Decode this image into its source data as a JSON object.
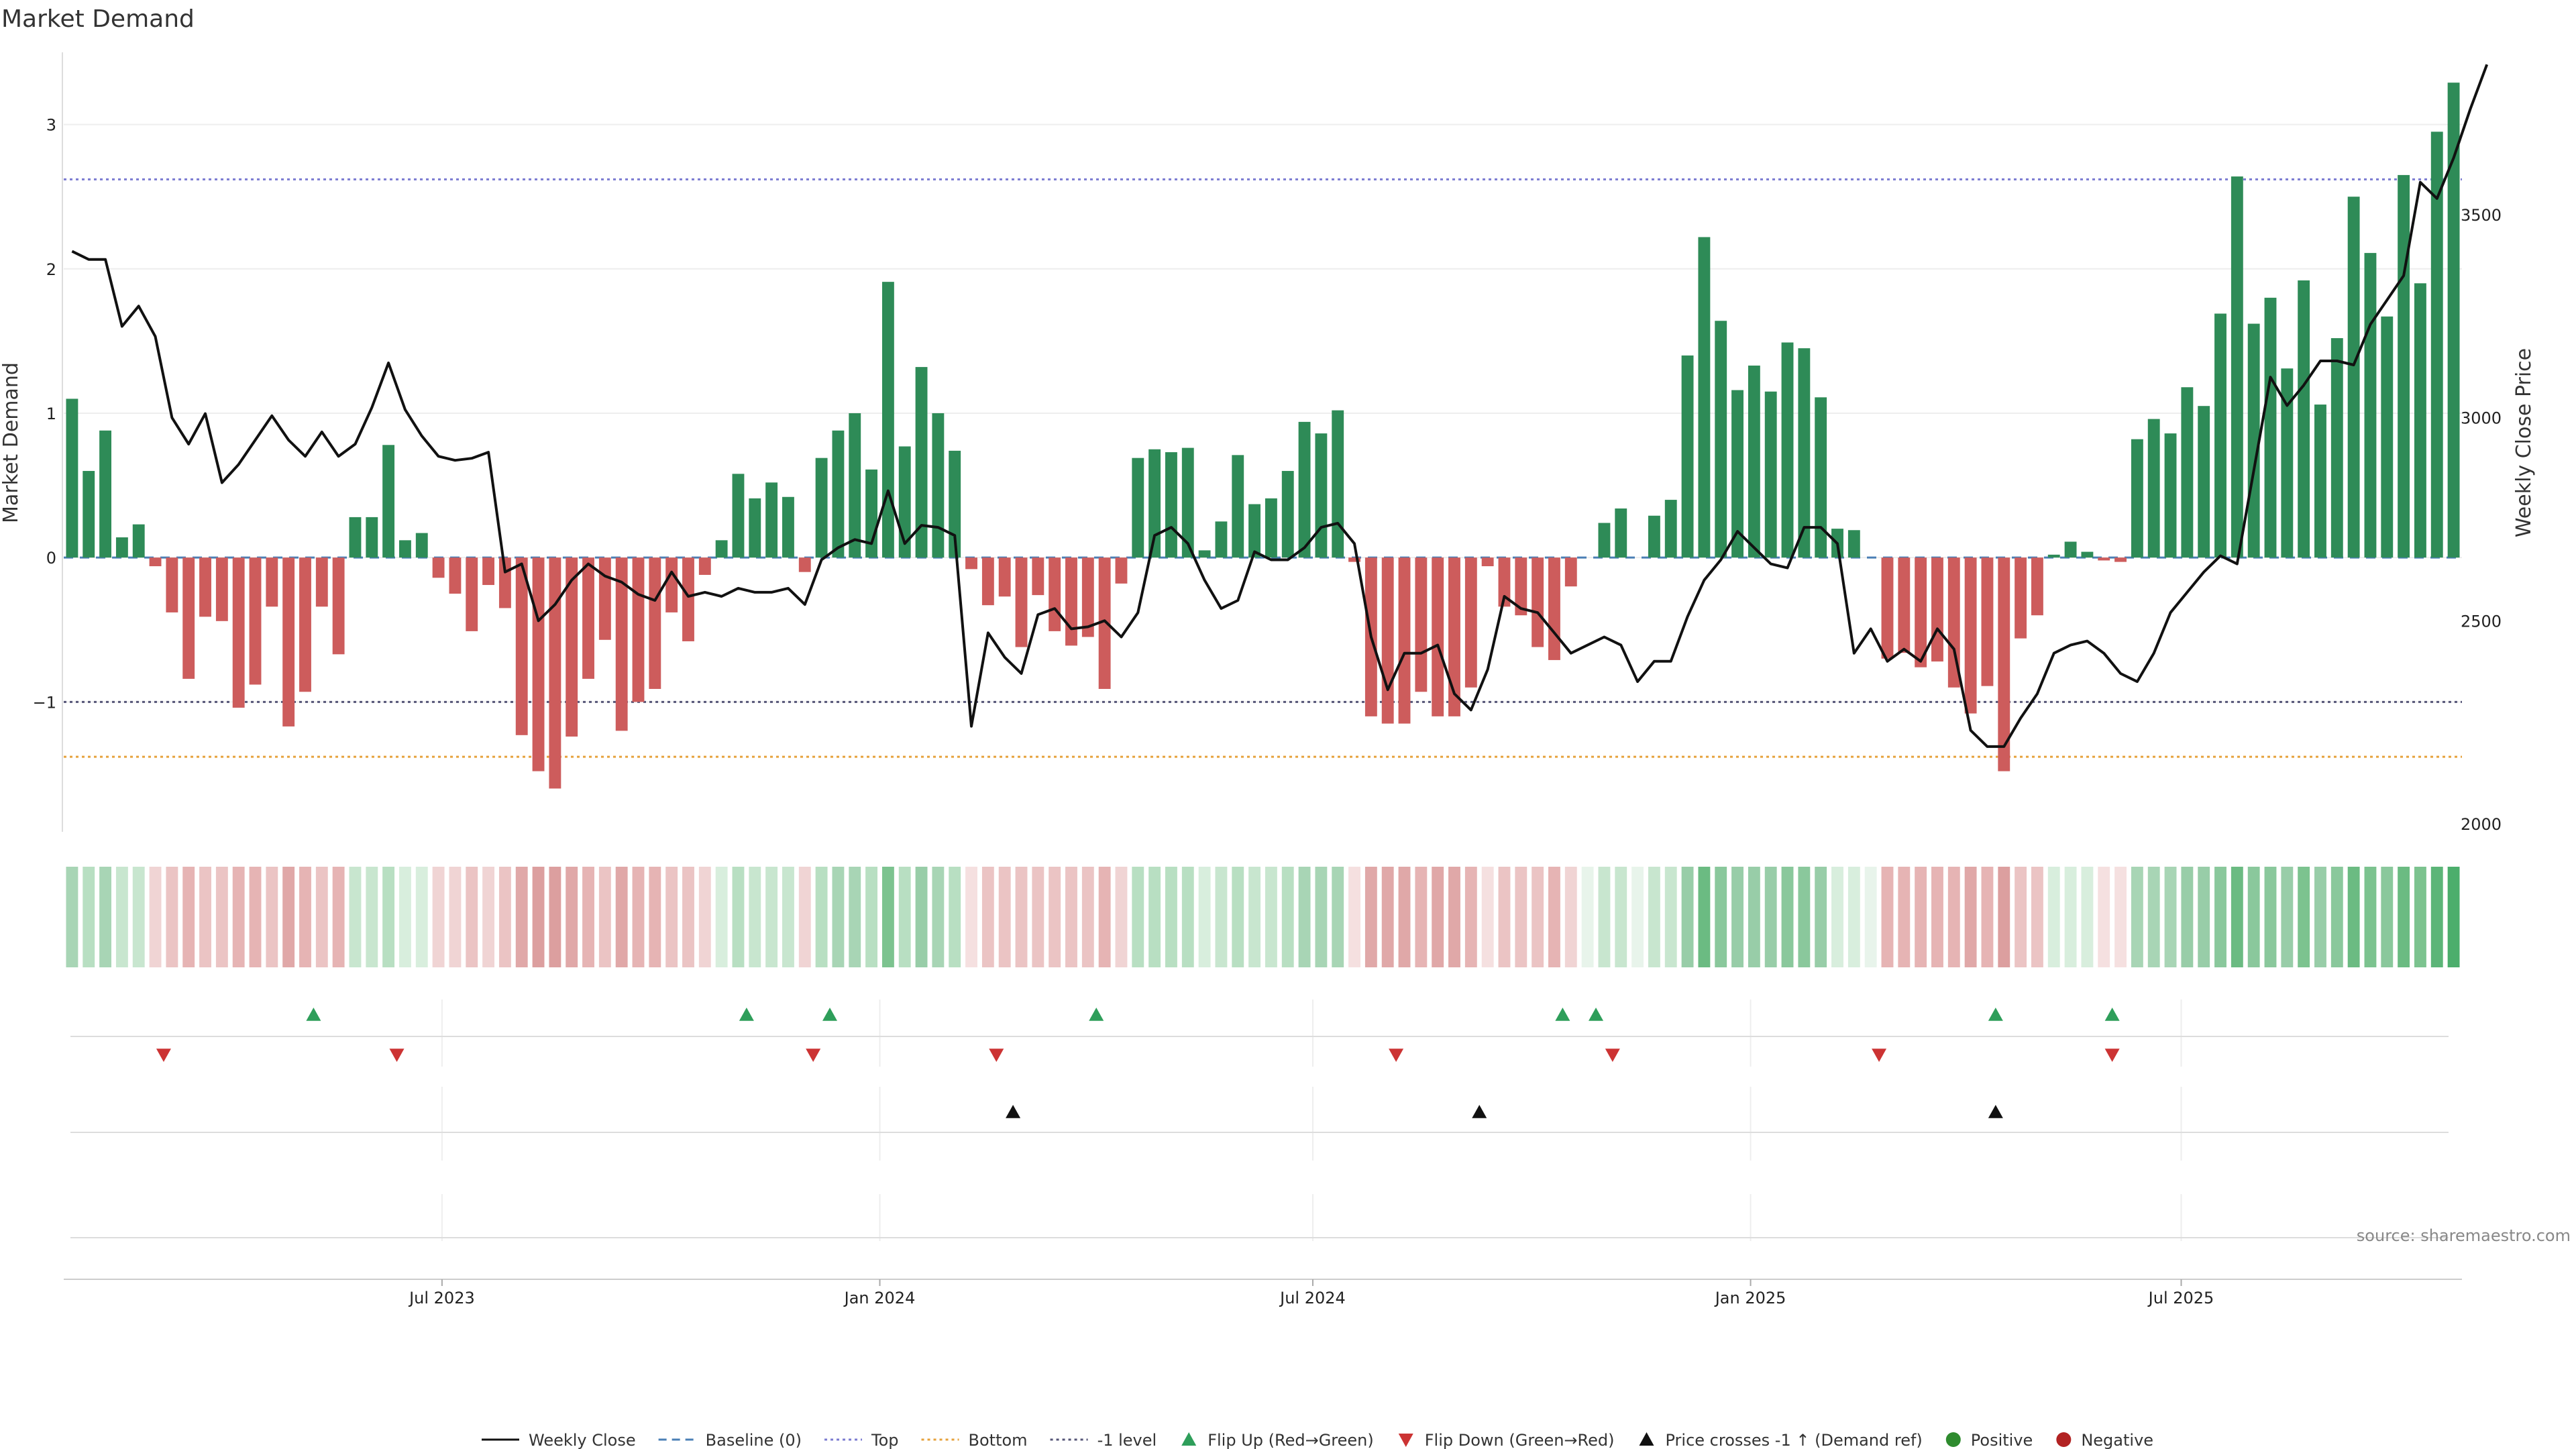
{
  "chart_data": {
    "type": "bar",
    "title": "Market Demand",
    "ylabel": "Market Demand",
    "y2label": "Weekly Close Price",
    "ylim": [
      -1.9,
      3.5
    ],
    "y2lim": [
      1980,
      3900
    ],
    "yticks": [
      -1,
      0,
      1,
      2,
      3
    ],
    "y2ticks": [
      2000,
      2500,
      3000,
      3500
    ],
    "x_date_start": "2023-01-23",
    "x_date_end": "2025-10-27",
    "xticks": [
      {
        "date": "2023-07-01",
        "label": "Jul 2023"
      },
      {
        "date": "2024-01-01",
        "label": "Jan 2024"
      },
      {
        "date": "2024-07-01",
        "label": "Jul 2024"
      },
      {
        "date": "2025-01-01",
        "label": "Jan 2025"
      },
      {
        "date": "2025-07-01",
        "label": "Jul 2025"
      }
    ],
    "reference_lines": [
      {
        "name": "Top",
        "value": 2.62,
        "color": "#7b7bd1"
      },
      {
        "name": "Bottom",
        "value": -1.38,
        "color": "#e6a23c"
      },
      {
        "name": "-1 level",
        "value": -1.0,
        "color": "#555577"
      },
      {
        "name": "Baseline (0)",
        "value": 0.0,
        "color": "#4a7fb5"
      }
    ],
    "positive_color": "#2e8b57",
    "negative_color": "#cd5c5c",
    "price_color": "#111111",
    "demand": [
      1.1,
      0.6,
      0.88,
      0.14,
      0.23,
      -0.06,
      -0.38,
      -0.84,
      -0.41,
      -0.44,
      -1.04,
      -0.88,
      -0.34,
      -1.17,
      -0.93,
      -0.34,
      -0.67,
      0.28,
      0.28,
      0.78,
      0.12,
      0.17,
      -0.14,
      -0.25,
      -0.51,
      -0.19,
      -0.35,
      -1.23,
      -1.48,
      -1.6,
      -1.24,
      -0.84,
      -0.57,
      -1.2,
      -1.0,
      -0.91,
      -0.38,
      -0.58,
      -0.12,
      0.12,
      0.58,
      0.41,
      0.52,
      0.42,
      -0.1,
      0.69,
      0.88,
      1.0,
      0.61,
      1.91,
      0.77,
      1.32,
      1.0,
      0.74,
      -0.08,
      -0.33,
      -0.27,
      -0.62,
      -0.26,
      -0.51,
      -0.61,
      -0.55,
      -0.91,
      -0.18,
      0.69,
      0.75,
      0.73,
      0.76,
      0.05,
      0.25,
      0.71,
      0.37,
      0.41,
      0.6,
      0.94,
      0.86,
      1.02,
      -0.03,
      -1.1,
      -1.15,
      -1.15,
      -0.93,
      -1.1,
      -1.1,
      -0.9,
      -0.06,
      -0.34,
      -0.4,
      -0.62,
      -0.71,
      -0.2,
      0.0,
      0.24,
      0.34,
      0.0,
      0.29,
      0.4,
      1.4,
      2.22,
      1.64,
      1.16,
      1.33,
      1.15,
      1.49,
      1.45,
      1.11,
      0.2,
      0.19,
      0.0,
      -0.7,
      -0.66,
      -0.76,
      -0.72,
      -0.9,
      -1.08,
      -0.89,
      -1.48,
      -0.56,
      -0.4,
      0.02,
      0.11,
      0.04,
      -0.02,
      -0.03,
      0.82,
      0.96,
      0.86,
      1.18,
      1.05,
      1.69,
      2.64,
      1.62,
      1.8,
      1.31,
      1.92,
      1.06,
      1.52,
      2.5,
      2.11,
      1.67,
      2.65,
      1.9,
      2.95,
      3.29
    ],
    "price": [
      3410,
      3390,
      3390,
      3225,
      3275,
      3200,
      3000,
      2935,
      3010,
      2840,
      2885,
      2945,
      3005,
      2945,
      2905,
      2965,
      2905,
      2935,
      3025,
      3135,
      3020,
      2955,
      2905,
      2895,
      2900,
      2915,
      2620,
      2640,
      2500,
      2540,
      2600,
      2640,
      2610,
      2595,
      2565,
      2550,
      2620,
      2560,
      2570,
      2560,
      2580,
      2570,
      2570,
      2580,
      2540,
      2650,
      2680,
      2700,
      2690,
      2820,
      2690,
      2735,
      2730,
      2710,
      2240,
      2470,
      2410,
      2370,
      2515,
      2530,
      2480,
      2485,
      2500,
      2460,
      2520,
      2710,
      2730,
      2690,
      2600,
      2530,
      2550,
      2670,
      2650,
      2650,
      2680,
      2730,
      2740,
      2690,
      2460,
      2330,
      2420,
      2420,
      2440,
      2320,
      2280,
      2380,
      2560,
      2530,
      2520,
      2470,
      2420,
      2440,
      2460,
      2440,
      2350,
      2400,
      2400,
      2510,
      2600,
      2650,
      2720,
      2680,
      2640,
      2630,
      2730,
      2730,
      2690,
      2420,
      2480,
      2400,
      2430,
      2400,
      2480,
      2430,
      2230,
      2190,
      2190,
      2260,
      2320,
      2420,
      2440,
      2450,
      2420,
      2370,
      2350,
      2420,
      2520,
      2570,
      2620,
      2660,
      2640,
      2870,
      3100,
      3030,
      3080,
      3140,
      3140,
      3130,
      3230,
      3290,
      3350,
      3580,
      3540,
      3640,
      3760,
      3870
    ],
    "demand_strip_colors": [
      "#a8d5b5",
      "#b8dfc2",
      "#a8d5b5",
      "#c8e6cf",
      "#c8e6cf",
      "#f0d4d4",
      "#ebc4c4",
      "#e6b4b4",
      "#ebc4c4",
      "#ebc4c4",
      "#e6b4b4",
      "#e6b4b4",
      "#ebc4c4",
      "#e0a8a8",
      "#e6b4b4",
      "#ebc4c4",
      "#e6b4b4",
      "#c8e6cf",
      "#c8e6cf",
      "#b8dfc2",
      "#d8eedd",
      "#d8eedd",
      "#f0d4d4",
      "#f0d4d4",
      "#ebc4c4",
      "#f0d4d4",
      "#ebc4c4",
      "#e0a8a8",
      "#dc9f9f",
      "#dc9f9f",
      "#e0a8a8",
      "#e6b4b4",
      "#ebc4c4",
      "#e0a8a8",
      "#e6b4b4",
      "#e6b4b4",
      "#ebc4c4",
      "#ebc4c4",
      "#f0d4d4",
      "#d8eedd",
      "#b8dfc2",
      "#c8e6cf",
      "#c8e6cf",
      "#c8e6cf",
      "#f0d4d4",
      "#b8dfc2",
      "#a8d5b5",
      "#a8d5b5",
      "#b8dfc2",
      "#7cc38f",
      "#b8dfc2",
      "#98cda8",
      "#a8d5b5",
      "#b8dfc2",
      "#f5e0e0",
      "#ebc4c4",
      "#ebc4c4",
      "#ebc4c4",
      "#ebc4c4",
      "#ebc4c4",
      "#ebc4c4",
      "#ebc4c4",
      "#e6b4b4",
      "#f0d4d4",
      "#b8dfc2",
      "#b8dfc2",
      "#b8dfc2",
      "#b8dfc2",
      "#d8eedd",
      "#c8e6cf",
      "#b8dfc2",
      "#c8e6cf",
      "#c8e6cf",
      "#b8dfc2",
      "#a8d5b5",
      "#a8d5b5",
      "#a8d5b5",
      "#f5e0e0",
      "#e0a8a8",
      "#e0a8a8",
      "#e0a8a8",
      "#e6b4b4",
      "#e0a8a8",
      "#e0a8a8",
      "#e6b4b4",
      "#f5e0e0",
      "#ebc4c4",
      "#ebc4c4",
      "#ebc4c4",
      "#e6b4b4",
      "#f0d4d4",
      "#e8f4eb",
      "#c8e6cf",
      "#c8e6cf",
      "#e8f4eb",
      "#c8e6cf",
      "#c8e6cf",
      "#98cda8",
      "#6bbb82",
      "#8ac89c",
      "#98cda8",
      "#98cda8",
      "#98cda8",
      "#8ac89c",
      "#8ac89c",
      "#98cda8",
      "#d8eedd",
      "#d8eedd",
      "#e8f4eb",
      "#e6b4b4",
      "#e6b4b4",
      "#e6b4b4",
      "#e6b4b4",
      "#e6b4b4",
      "#e0a8a8",
      "#e6b4b4",
      "#dc9f9f",
      "#ebc4c4",
      "#ebc4c4",
      "#d8eedd",
      "#d8eedd",
      "#d8eedd",
      "#f5e0e0",
      "#f5e0e0",
      "#a8d5b5",
      "#a8d5b5",
      "#a8d5b5",
      "#98cda8",
      "#98cda8",
      "#8ac89c",
      "#6bbb82",
      "#8ac89c",
      "#8ac89c",
      "#98cda8",
      "#7cc38f",
      "#98cda8",
      "#8ac89c",
      "#6bbb82",
      "#7cc38f",
      "#8ac89c",
      "#6bbb82",
      "#7cc38f",
      "#5cb578",
      "#4cae6c"
    ],
    "flip_up_dates": [
      "2023-05-08",
      "2023-11-06",
      "2023-12-11",
      "2024-04-01",
      "2024-10-14",
      "2024-10-28",
      "2025-04-14",
      "2025-06-02"
    ],
    "flip_down_dates": [
      "2023-03-06",
      "2023-06-12",
      "2023-12-04",
      "2024-02-19",
      "2024-08-05",
      "2024-11-04",
      "2025-02-24",
      "2025-06-02"
    ],
    "price_cross_dates": [
      "2024-02-26",
      "2024-09-09",
      "2025-04-14"
    ],
    "legend": [
      {
        "type": "line-solid",
        "label": "Weekly Close",
        "color": "#111111"
      },
      {
        "type": "line-dash",
        "label": "Baseline (0)",
        "color": "#4a7fb5"
      },
      {
        "type": "line-dot",
        "label": "Top",
        "color": "#7b7bd1"
      },
      {
        "type": "line-dot",
        "label": "Bottom",
        "color": "#e6a23c"
      },
      {
        "type": "line-dot",
        "label": "-1 level",
        "color": "#555577"
      },
      {
        "type": "tri-up",
        "label": "Flip Up (Red→Green)",
        "color": "#2e9e5a"
      },
      {
        "type": "tri-down",
        "label": "Flip Down (Green→Red)",
        "color": "#cc3333"
      },
      {
        "type": "tri-up",
        "label": "Price crosses -1 ↑ (Demand ref)",
        "color": "#111111"
      },
      {
        "type": "circle",
        "label": "Positive",
        "color": "#2e8b2e"
      },
      {
        "type": "circle",
        "label": "Negative",
        "color": "#b22222"
      }
    ],
    "source": "source: sharemaestro.com"
  }
}
